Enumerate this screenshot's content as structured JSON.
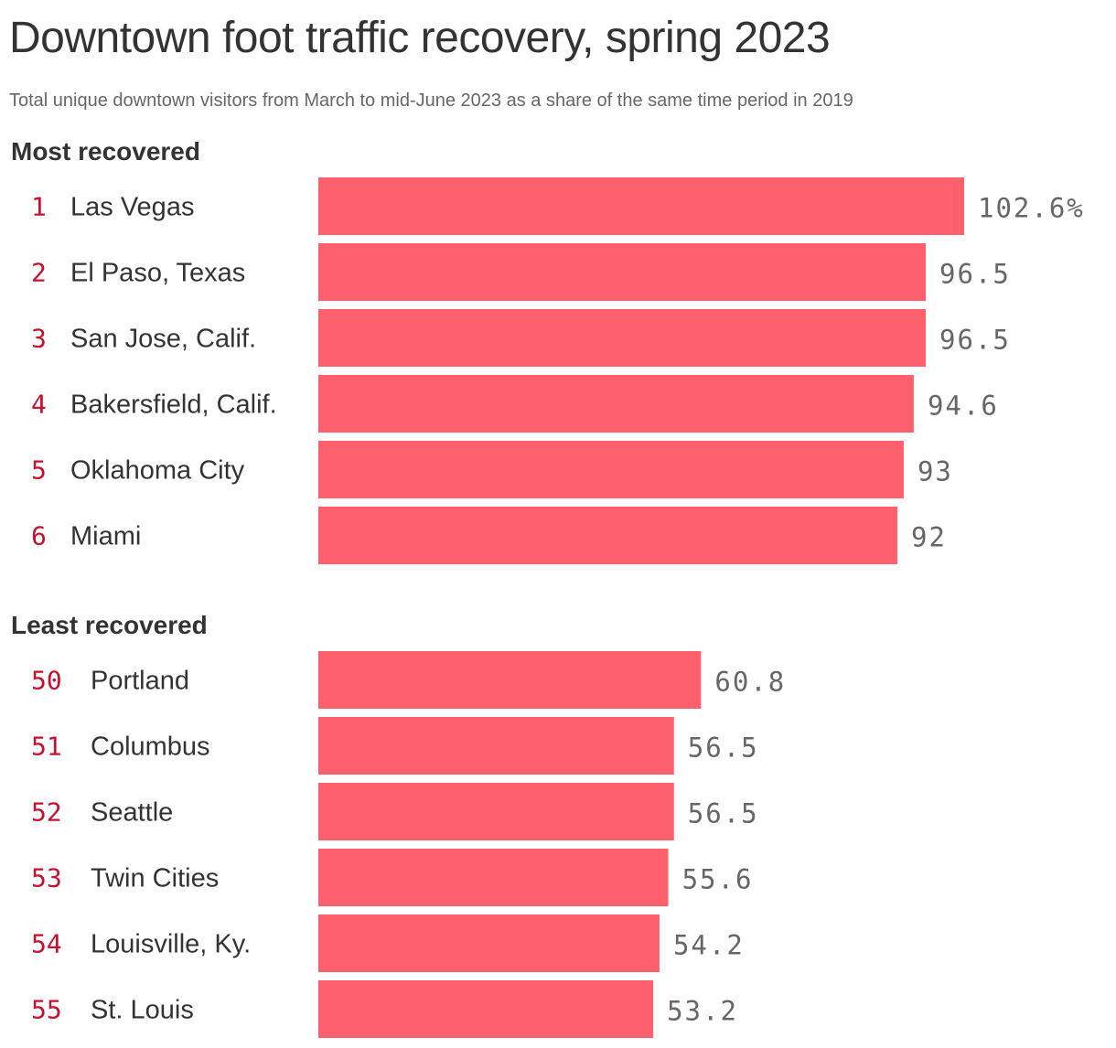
{
  "title": "Downtown foot traffic recovery, spring 2023",
  "subtitle": "Total unique downtown visitors from March to mid-June 2023 as a share of the same time period in 2019",
  "colors": {
    "bar": "#ff606d",
    "rank": "#c8102e",
    "text": "#333333",
    "value": "#666666"
  },
  "chart_data": {
    "type": "bar",
    "title": "Downtown foot traffic recovery, spring 2023",
    "subtitle": "Total unique downtown visitors from March to mid-June 2023 as a share of the same time period in 2019",
    "unit_suffix": "%",
    "groups": [
      {
        "label": "Most recovered",
        "rows": [
          {
            "rank": "1",
            "city": "Las Vegas",
            "value": 102.6,
            "value_label": "102.6%"
          },
          {
            "rank": "2",
            "city": "El Paso, Texas",
            "value": 96.5,
            "value_label": "96.5"
          },
          {
            "rank": "3",
            "city": "San Jose, Calif.",
            "value": 96.5,
            "value_label": "96.5"
          },
          {
            "rank": "4",
            "city": "Bakersfield, Calif.",
            "value": 94.6,
            "value_label": "94.6"
          },
          {
            "rank": "5",
            "city": "Oklahoma City",
            "value": 93,
            "value_label": "93"
          },
          {
            "rank": "6",
            "city": "Miami",
            "value": 92,
            "value_label": "92"
          }
        ]
      },
      {
        "label": "Least recovered",
        "rows": [
          {
            "rank": "50",
            "city": "Portland",
            "value": 60.8,
            "value_label": "60.8"
          },
          {
            "rank": "51",
            "city": "Columbus",
            "value": 56.5,
            "value_label": "56.5"
          },
          {
            "rank": "52",
            "city": "Seattle",
            "value": 56.5,
            "value_label": "56.5"
          },
          {
            "rank": "53",
            "city": "Twin Cities",
            "value": 55.6,
            "value_label": "55.6"
          },
          {
            "rank": "54",
            "city": "Louisville, Ky.",
            "value": 54.2,
            "value_label": "54.2"
          },
          {
            "rank": "55",
            "city": "St. Louis",
            "value": 53.2,
            "value_label": "53.2"
          }
        ]
      }
    ]
  }
}
